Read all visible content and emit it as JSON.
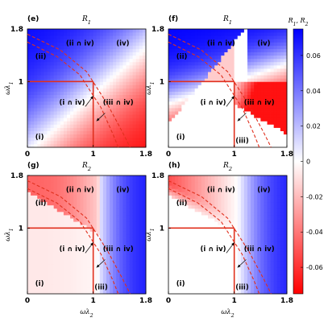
{
  "chart_data": {
    "type": "heatmap",
    "colorbar": {
      "title": "R_1, R_2",
      "range": [
        -0.075,
        0.075
      ],
      "ticks": [
        0.06,
        0.04,
        0.02,
        0,
        -0.02,
        -0.04,
        -0.06
      ],
      "tick_labels": [
        "0.06",
        "0.04",
        "0.02",
        "0",
        "-0.02",
        "-0.04",
        "-0.06"
      ],
      "low_color": "#ff0000",
      "mid_color": "#ffffff",
      "high_color": "#0000ff"
    },
    "panels": [
      {
        "letter": "(e)",
        "title": "R_1",
        "quantity": "R1",
        "variant": "e",
        "xlim": [
          0,
          1.8
        ],
        "ylim": [
          0,
          1.8
        ],
        "xticks": [
          "0",
          "1",
          "1.8"
        ],
        "yticks": [
          "0",
          "1",
          "1.8"
        ],
        "xlabel": "",
        "ylabel": "ωλ_1",
        "regions": [
          {
            "label": "(i)",
            "x": 0.12,
            "y": 0.12
          },
          {
            "label": "(ii)",
            "x": 0.12,
            "y": 1.35
          },
          {
            "label": "(ii ∩ iv)",
            "x": 0.8,
            "y": 1.55
          },
          {
            "label": "(iv)",
            "x": 1.45,
            "y": 1.55
          },
          {
            "label": "(i ∩ iv)",
            "x": 0.68,
            "y": 0.65
          },
          {
            "label": "(iii ∩ iv)",
            "x": 1.38,
            "y": 0.65
          }
        ]
      },
      {
        "letter": "(f)",
        "title": "R_1",
        "quantity": "R1",
        "variant": "f",
        "xlim": [
          0,
          1.8
        ],
        "ylim": [
          0,
          1.8
        ],
        "xticks": [
          "0",
          "1",
          "1.8"
        ],
        "yticks": [
          "0",
          "1",
          "1.8"
        ],
        "xlabel": "",
        "ylabel": "ωλ_1",
        "regions": [
          {
            "label": "(i)",
            "x": 0.12,
            "y": 0.12
          },
          {
            "label": "(ii)",
            "x": 0.12,
            "y": 1.35
          },
          {
            "label": "(ii ∩ iv)",
            "x": 0.8,
            "y": 1.55
          },
          {
            "label": "(iv)",
            "x": 1.45,
            "y": 1.55
          },
          {
            "label": "(i ∩ iv)",
            "x": 0.68,
            "y": 0.65
          },
          {
            "label": "(iii ∩ iv)",
            "x": 1.38,
            "y": 0.65
          },
          {
            "label": "(iii)",
            "x": 1.12,
            "y": 0.07
          }
        ]
      },
      {
        "letter": "(g)",
        "title": "R_2",
        "quantity": "R2",
        "variant": "g",
        "xlim": [
          0,
          1.8
        ],
        "ylim": [
          0,
          1.8
        ],
        "xticks": [
          "0",
          "1",
          "1.8"
        ],
        "yticks": [
          "0",
          "1",
          "1.8"
        ],
        "xlabel": "ωλ_2",
        "ylabel": "ωλ_1",
        "regions": [
          {
            "label": "(i)",
            "x": 0.12,
            "y": 0.12
          },
          {
            "label": "(ii)",
            "x": 0.12,
            "y": 1.35
          },
          {
            "label": "(ii ∩ iv)",
            "x": 0.8,
            "y": 1.55
          },
          {
            "label": "(iv)",
            "x": 1.45,
            "y": 1.55
          },
          {
            "label": "(i ∩ iv)",
            "x": 0.68,
            "y": 0.65
          },
          {
            "label": "(iii ∩ iv)",
            "x": 1.38,
            "y": 0.65
          },
          {
            "label": "(iii)",
            "x": 1.12,
            "y": 0.07
          }
        ]
      },
      {
        "letter": "(h)",
        "title": "R_2",
        "quantity": "R2",
        "variant": "h",
        "xlim": [
          0,
          1.8
        ],
        "ylim": [
          0,
          1.8
        ],
        "xticks": [
          "0",
          "1",
          "1.8"
        ],
        "yticks": [
          "0",
          "1",
          "1.8"
        ],
        "xlabel": "ωλ_2",
        "ylabel": "ωλ_1",
        "regions": [
          {
            "label": "(i)",
            "x": 0.12,
            "y": 0.12
          },
          {
            "label": "(ii)",
            "x": 0.12,
            "y": 1.35
          },
          {
            "label": "(ii ∩ iv)",
            "x": 0.8,
            "y": 1.55
          },
          {
            "label": "(iv)",
            "x": 1.45,
            "y": 1.55
          },
          {
            "label": "(i ∩ iv)",
            "x": 0.68,
            "y": 0.65
          },
          {
            "label": "(iii ∩ iv)",
            "x": 1.38,
            "y": 0.65
          },
          {
            "label": "(iii)",
            "x": 1.12,
            "y": 0.07
          }
        ]
      }
    ],
    "boundaries": {
      "solid": [
        [
          [
            0,
            1
          ],
          [
            1,
            1
          ]
        ],
        [
          [
            1,
            1
          ],
          [
            1,
            0
          ]
        ]
      ],
      "dashed": [
        [
          [
            0,
            1.6
          ],
          [
            0.45,
            1.38
          ],
          [
            0.8,
            1.1
          ],
          [
            1.12,
            0.6
          ],
          [
            1.3,
            0.2
          ],
          [
            1.38,
            0
          ]
        ],
        [
          [
            0,
            1.72
          ],
          [
            0.5,
            1.48
          ],
          [
            0.9,
            1.15
          ],
          [
            1.22,
            0.65
          ],
          [
            1.45,
            0.22
          ],
          [
            1.56,
            0
          ]
        ]
      ],
      "arrows": [
        {
          "from": [
            0.88,
            0.62
          ],
          "to": [
            1.0,
            0.78
          ]
        },
        {
          "from": [
            1.18,
            0.52
          ],
          "to": [
            1.05,
            0.4
          ]
        }
      ],
      "boundary_color": "#e0301e"
    }
  }
}
